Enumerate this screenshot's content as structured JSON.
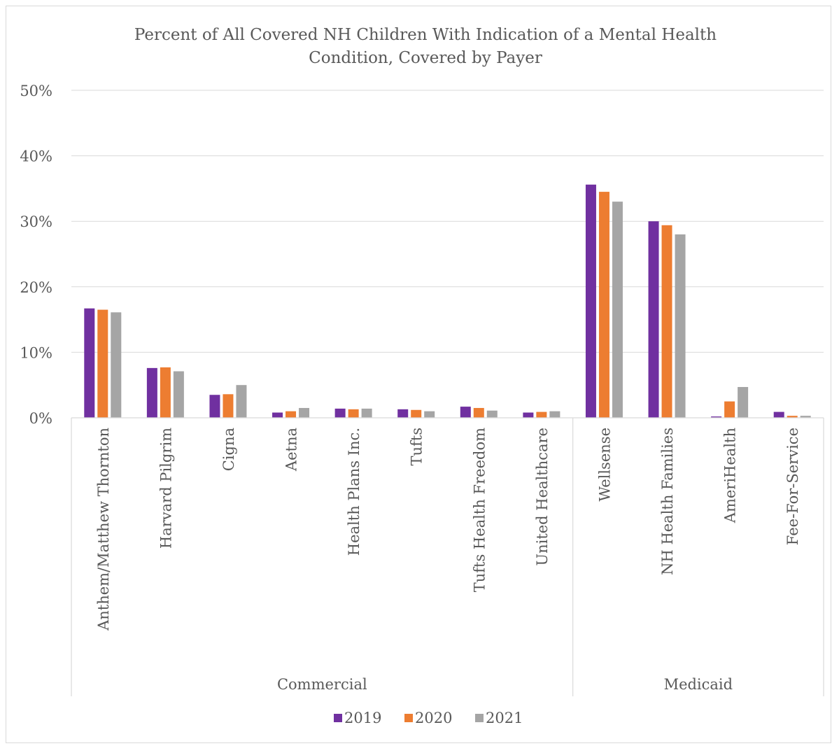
{
  "chart_data": {
    "type": "bar",
    "title_lines": [
      "Percent of All Covered NH Children With Indication of a Mental Health",
      "Condition, Covered by Payer"
    ],
    "title": "Percent of All Covered NH Children With Indication of a Mental Health Condition, Covered by Payer",
    "xlabel": "",
    "ylabel": "",
    "ylim": [
      0,
      50
    ],
    "y_ticks": [
      0,
      10,
      20,
      30,
      40,
      50
    ],
    "y_tick_labels": [
      "0%",
      "10%",
      "20%",
      "30%",
      "40%",
      "50%"
    ],
    "grid": true,
    "legend_position": "bottom",
    "categories": [
      "Anthem/Matthew Thornton",
      "Harvard Pilgrim",
      "Cigna",
      "Aetna",
      "Health Plans Inc.",
      "Tufts",
      "Tufts Health Freedom",
      "United Healthcare",
      "Wellsense",
      "NH Health Families",
      "AmeriHealth",
      "Fee-For-Service"
    ],
    "groups": [
      {
        "label": "Commercial",
        "start": 0,
        "end": 7
      },
      {
        "label": "Medicaid",
        "start": 8,
        "end": 11
      }
    ],
    "series": [
      {
        "name": "2019",
        "color": "#7030a0",
        "values": [
          16.7,
          7.6,
          3.5,
          0.8,
          1.4,
          1.3,
          1.7,
          0.8,
          35.6,
          30.0,
          0.2,
          0.9
        ]
      },
      {
        "name": "2020",
        "color": "#ed7d31",
        "values": [
          16.5,
          7.7,
          3.6,
          1.0,
          1.3,
          1.2,
          1.5,
          0.9,
          34.5,
          29.4,
          2.5,
          0.3
        ]
      },
      {
        "name": "2021",
        "color": "#a5a5a5",
        "values": [
          16.1,
          7.1,
          5.0,
          1.5,
          1.4,
          1.0,
          1.1,
          1.0,
          33.0,
          28.0,
          4.7,
          0.3
        ]
      }
    ]
  }
}
